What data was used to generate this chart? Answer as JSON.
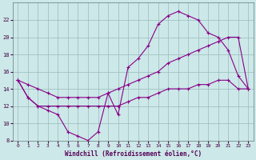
{
  "xlabel": "Windchill (Refroidissement éolien,°C)",
  "background_color": "#cce8e8",
  "line_color": "#880088",
  "grid_color": "#99bbbb",
  "hours": [
    0,
    1,
    2,
    3,
    4,
    5,
    6,
    7,
    8,
    9,
    10,
    11,
    12,
    13,
    14,
    15,
    16,
    17,
    18,
    19,
    20,
    21,
    22,
    23
  ],
  "line1": [
    15,
    13,
    12,
    11.5,
    11,
    9,
    8.5,
    8,
    9,
    13.5,
    11,
    16.5,
    17.5,
    19,
    21.5,
    22.5,
    23,
    22.5,
    22,
    20.5,
    20,
    18.5,
    15.5,
    14
  ],
  "line2": [
    15,
    14.5,
    14,
    13.5,
    13,
    13,
    13,
    13,
    13,
    13.5,
    14,
    14.5,
    15,
    15.5,
    16,
    17,
    17.5,
    18,
    18.5,
    19,
    19.5,
    20,
    20,
    14
  ],
  "line3": [
    15,
    13,
    12,
    12,
    12,
    12,
    12,
    12,
    12,
    12,
    12,
    12.5,
    13,
    13,
    13.5,
    14,
    14,
    14,
    14.5,
    14.5,
    15,
    15,
    14,
    14
  ],
  "ylim": [
    8,
    24
  ],
  "xlim": [
    -0.5,
    23.5
  ],
  "yticks": [
    8,
    10,
    12,
    14,
    16,
    18,
    20,
    22
  ],
  "xticks": [
    0,
    1,
    2,
    3,
    4,
    5,
    6,
    7,
    8,
    9,
    10,
    11,
    12,
    13,
    14,
    15,
    16,
    17,
    18,
    19,
    20,
    21,
    22,
    23
  ]
}
